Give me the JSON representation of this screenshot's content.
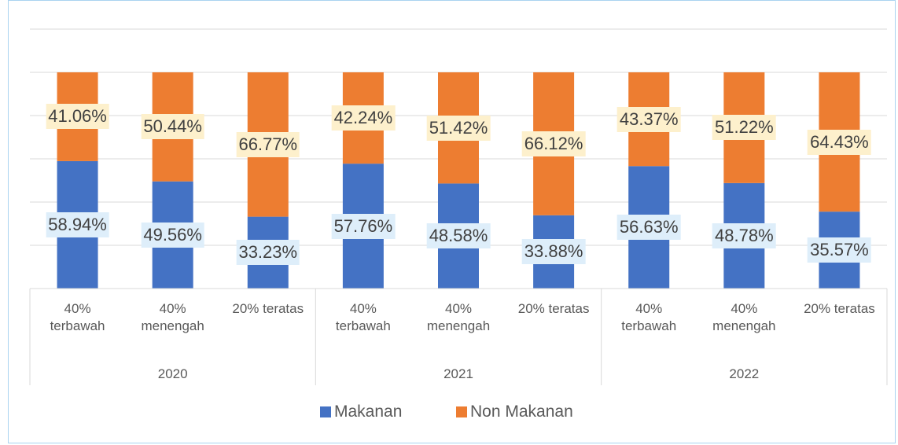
{
  "chart_data": {
    "type": "stacked_bar",
    "groups": [
      "2020",
      "2021",
      "2022"
    ],
    "categories": [
      "40% terbawah",
      "40% menengah",
      "20% teratas",
      "40% terbawah",
      "40% menengah",
      "20% teratas",
      "40% terbawah",
      "40% menengah",
      "20% teratas"
    ],
    "series": [
      {
        "name": "Makanan",
        "color": "#4472c4",
        "label_background": "#deeefa",
        "values": [
          58.94,
          49.56,
          33.23,
          57.76,
          48.58,
          33.88,
          56.63,
          48.78,
          35.57
        ],
        "value_labels": [
          "58.94%",
          "49.56%",
          "33.23%",
          "57.76%",
          "48.58%",
          "33.88%",
          "56.63%",
          "48.78%",
          "35.57%"
        ]
      },
      {
        "name": "Non Makanan",
        "color": "#ed7d31",
        "label_background": "#fdf0cc",
        "values": [
          41.06,
          50.44,
          66.77,
          42.24,
          51.42,
          66.12,
          43.37,
          51.22,
          64.43
        ],
        "value_labels": [
          "41.06%",
          "50.44%",
          "66.77%",
          "42.24%",
          "51.42%",
          "66.12%",
          "43.37%",
          "51.22%",
          "64.43%"
        ]
      }
    ],
    "ylim": [
      0,
      120
    ],
    "yticks": [
      0,
      20,
      40,
      60,
      80,
      100,
      120
    ],
    "grid": true,
    "legend": "bottom"
  }
}
